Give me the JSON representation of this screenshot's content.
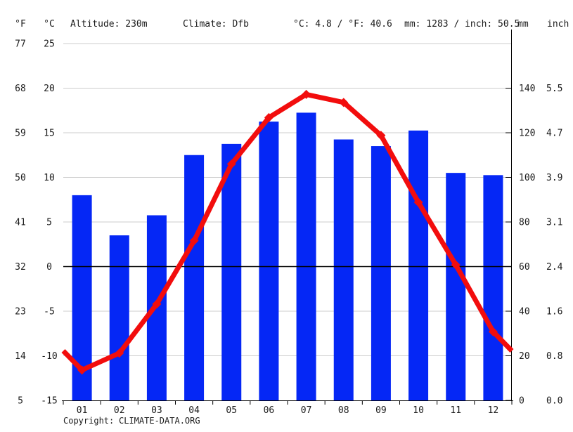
{
  "header": {
    "f_label": "°F",
    "c_label": "°C",
    "altitude": "Altitude: 230m",
    "climate": "Climate: Dfb",
    "temp_summary": "°C: 4.8 / °F: 40.6",
    "precip_summary": "mm: 1283 / inch: 50.5",
    "mm_label": "mm",
    "inch_label": "inch"
  },
  "footer": {
    "copyright_label": "Copyright:",
    "link": "CLIMATE-DATA.ORG"
  },
  "colors": {
    "bar": "#0527f5",
    "line": "#f20d0d",
    "header_red": "#e62525",
    "tick_red": "#f15050",
    "header_blue": "#2238e8",
    "tick_blue": "#4155e8",
    "link_blue": "#2b3bd6",
    "grid": "#cccccc",
    "axis": "#000000",
    "month": "#222222"
  },
  "chart_data": {
    "type": "bar",
    "title": "",
    "categories": [
      "01",
      "02",
      "03",
      "04",
      "05",
      "06",
      "07",
      "08",
      "09",
      "10",
      "11",
      "12"
    ],
    "series": [
      {
        "name": "precipitation_mm",
        "type": "bar",
        "values": [
          92,
          74,
          83,
          110,
          115,
          125,
          129,
          117,
          114,
          121,
          102,
          101
        ]
      },
      {
        "name": "temperature_c",
        "type": "line",
        "values": [
          -11.6,
          -9.7,
          -4.2,
          2.9,
          11.5,
          16.7,
          19.3,
          18.4,
          14.7,
          7.2,
          0.2,
          -7.3
        ]
      }
    ],
    "axes": {
      "left_f_ticks": [
        77,
        68,
        59,
        50,
        41,
        32,
        23,
        14,
        5
      ],
      "left_c_ticks": [
        25,
        20,
        15,
        10,
        5,
        0,
        -5,
        -10,
        -15
      ],
      "right_mm_ticks": [
        140,
        120,
        100,
        80,
        60,
        40,
        20,
        0
      ],
      "right_inch_ticks": [
        "5.5",
        "4.7",
        "3.9",
        "3.1",
        "2.4",
        "1.6",
        "0.8",
        "0.0"
      ],
      "temp_range_c": [
        -15,
        25
      ],
      "precip_range_mm": [
        0,
        160
      ],
      "grid": true,
      "zero_line_c": 0
    },
    "legend": "none"
  }
}
